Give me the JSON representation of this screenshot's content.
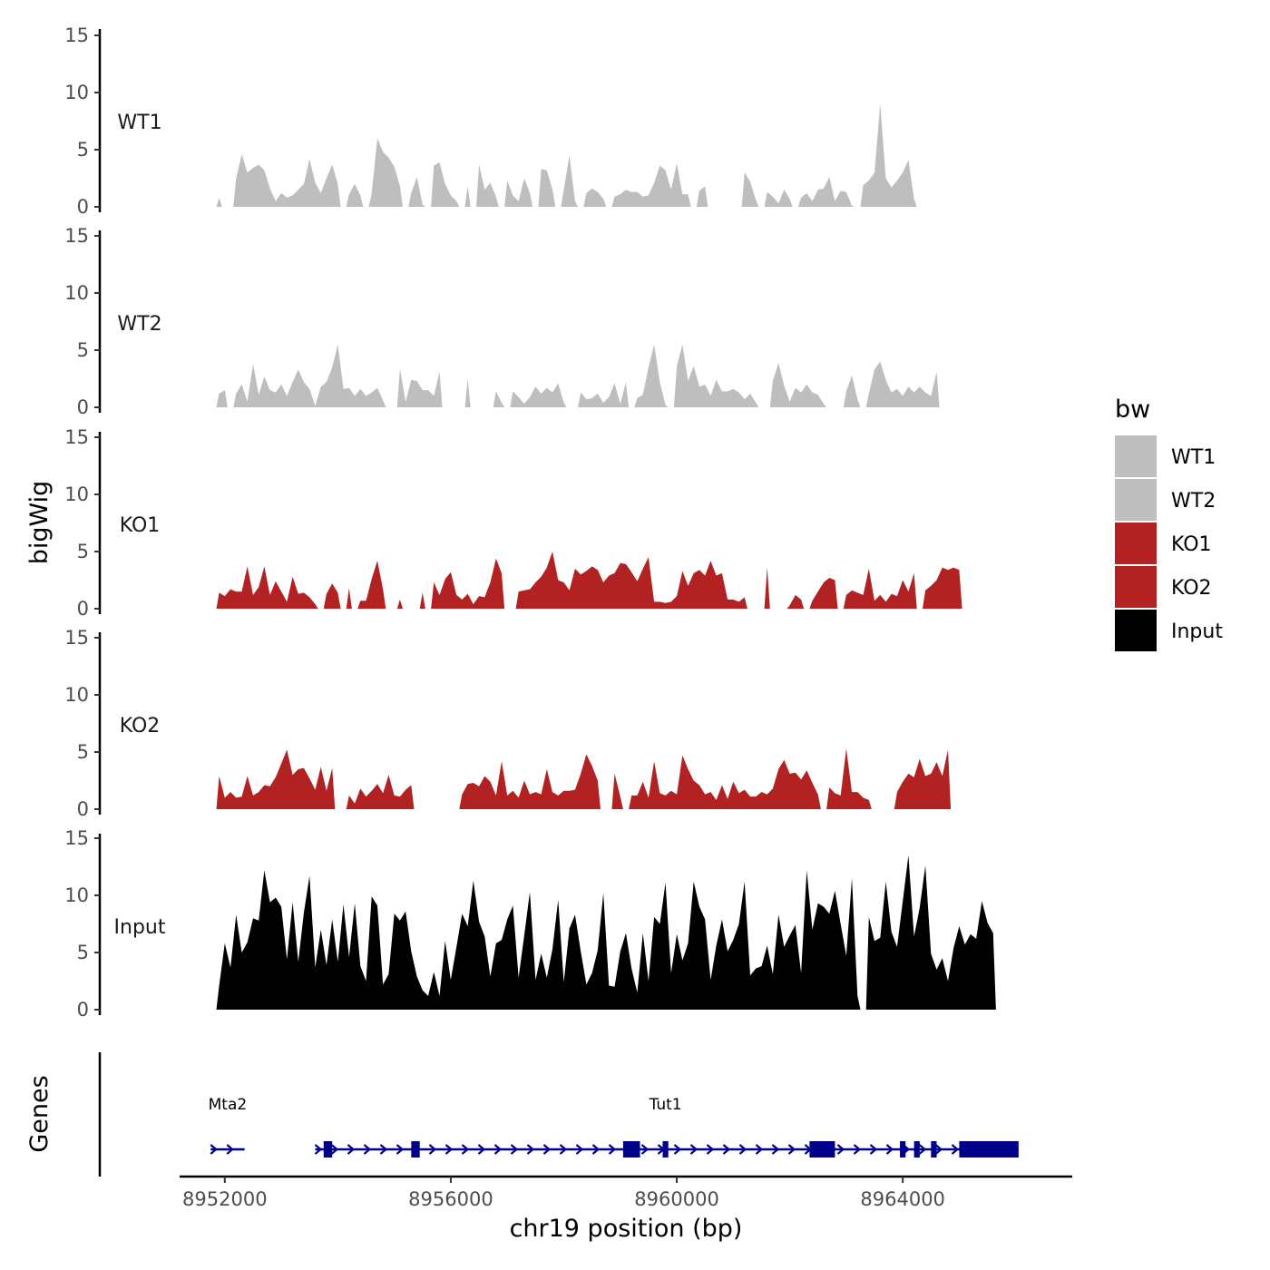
{
  "chart_data": {
    "type": "area",
    "title": "",
    "xlabel": "chr19 position (bp)",
    "ylabel_tracks": "bigWig",
    "ylabel_genes": "Genes",
    "chromosome": "chr19",
    "xlim": [
      8951200,
      8967000
    ],
    "x_ticks": [
      8952000,
      8956000,
      8960000,
      8964000
    ],
    "x_tick_labels": [
      "8952000",
      "8956000",
      "8960000",
      "8964000"
    ],
    "ylim": [
      0,
      15
    ],
    "y_ticks": [
      0,
      5,
      10,
      15
    ],
    "y_tick_labels": [
      "0",
      "5",
      "10",
      "15"
    ],
    "legend": {
      "title": "bw",
      "position": "right",
      "entries": [
        {
          "name": "WT1",
          "color": "#bebebe"
        },
        {
          "name": "WT2",
          "color": "#bebebe"
        },
        {
          "name": "KO1",
          "color": "#b22222"
        },
        {
          "name": "KO2",
          "color": "#b22222"
        },
        {
          "name": "Input",
          "color": "#000000"
        }
      ]
    },
    "series": [
      {
        "name": "WT1",
        "color": "#bebebe",
        "start": 8951900,
        "step": 100,
        "values": [
          0.8,
          0,
          0,
          2.5,
          4.6,
          3,
          3.4,
          3.7,
          3.2,
          1.6,
          0.5,
          1.2,
          0.8,
          1,
          1.5,
          2,
          4.2,
          2.1,
          1.2,
          2.5,
          3.7,
          2,
          0,
          1.1,
          2,
          1,
          0,
          1.2,
          6,
          4.8,
          4.3,
          3.5,
          1.8,
          0,
          1.2,
          2.6,
          0.2,
          0,
          3.6,
          3.9,
          2,
          1,
          0.5,
          0,
          1.8,
          0,
          3.7,
          1.5,
          2.1,
          0.9,
          0,
          2.3,
          1,
          0.5,
          2.5,
          1.2,
          0,
          3.3,
          3.2,
          1.5,
          0,
          1.5,
          4.5,
          0.5,
          0,
          1.2,
          1.6,
          1.3,
          0.7,
          0,
          0.9,
          1.1,
          1.5,
          1.3,
          1.3,
          0.9,
          1,
          2.1,
          3.6,
          3.2,
          1.5,
          3.8,
          1.1,
          1.1,
          0,
          1.4,
          1.8,
          0,
          0,
          0,
          0,
          0,
          0,
          3,
          2.2,
          0.6,
          0,
          1.3,
          0.9,
          0.3,
          1.5,
          0.7,
          0,
          0.8,
          1.2,
          0.5,
          1.5,
          1.6,
          2.6,
          0.5,
          1.4,
          1.3,
          0.1,
          0,
          1.9,
          2.3,
          3,
          9,
          2.5,
          1.7,
          2.3,
          3,
          4.1,
          0.7
        ]
      },
      {
        "name": "WT2",
        "color": "#bebebe",
        "start": 8951900,
        "step": 100,
        "values": [
          1.2,
          1.5,
          0,
          1.2,
          2,
          0.5,
          3.8,
          1.1,
          2.7,
          1.5,
          1.3,
          2,
          1,
          2.2,
          3.3,
          2.2,
          1.6,
          0.1,
          1.8,
          2.2,
          3.5,
          5.5,
          1.6,
          1.7,
          1,
          1.6,
          1,
          1.3,
          1.7,
          0.6,
          0,
          0,
          3.4,
          0.5,
          2.4,
          2.3,
          1.5,
          1.5,
          1,
          3.1,
          0,
          0,
          0,
          0,
          2.5,
          0,
          0,
          0,
          0,
          1.4,
          0.4,
          0,
          1.4,
          0.9,
          0.3,
          0.9,
          1.8,
          1.2,
          1.7,
          1.3,
          2.1,
          0.4,
          0,
          0,
          1.3,
          0.7,
          0.8,
          1.2,
          0.4,
          0.9,
          2.1,
          0.3,
          2.2,
          0,
          0.8,
          1.1,
          3.5,
          5.5,
          2.2,
          0.2,
          0,
          3.6,
          5.5,
          2.3,
          3.6,
          1.8,
          2,
          1,
          2.4,
          1.4,
          1.4,
          1.6,
          1.3,
          0.7,
          1.2,
          0.4,
          0,
          0,
          2.3,
          3.9,
          1.9,
          0.5,
          1.7,
          1.3,
          2,
          1.3,
          1.1,
          0.3,
          0,
          0,
          0,
          1.4,
          2.8,
          0.7,
          0,
          1.2,
          3.3,
          4,
          2.4,
          1.3,
          1.6,
          1,
          1.8,
          1.3,
          1.8,
          1.3,
          1,
          3.1
        ]
      },
      {
        "name": "KO1",
        "color": "#b22222",
        "start": 8951900,
        "step": 100,
        "values": [
          1.4,
          1.1,
          1.7,
          1.5,
          1.5,
          3.7,
          1.2,
          1.9,
          3.7,
          1.2,
          2.4,
          1.5,
          0.6,
          2.8,
          1.3,
          1.4,
          1,
          0.4,
          0,
          1.3,
          2.2,
          1.4,
          0,
          1.8,
          0,
          0.7,
          0.7,
          2.6,
          4.2,
          1.7,
          0,
          0,
          0.8,
          0,
          0,
          0,
          1.4,
          0,
          2.3,
          1.2,
          2.6,
          3.2,
          1.2,
          0.8,
          1.3,
          0.4,
          1.1,
          1,
          2.3,
          4.4,
          3.1,
          0,
          0,
          1.5,
          1.6,
          1.7,
          2.3,
          2.8,
          3.6,
          5,
          2.5,
          2.3,
          1.6,
          3.5,
          3,
          3.3,
          3.7,
          3.4,
          2.3,
          2.9,
          3.1,
          4,
          3.9,
          3.2,
          2.4,
          3.5,
          4.5,
          0.6,
          0.6,
          0.5,
          0.6,
          1.1,
          3.3,
          2,
          3.1,
          3.4,
          2.9,
          4.2,
          2.9,
          3.1,
          0.8,
          0.8,
          0.6,
          1,
          0,
          0,
          0,
          3.6,
          0,
          0,
          0,
          0.3,
          1.2,
          0.8,
          0,
          0.7,
          1.5,
          2.3,
          2.7,
          2.5,
          0,
          1.2,
          1.6,
          1.4,
          1.2,
          3.5,
          0.7,
          1.2,
          0.6,
          1.3,
          1.1,
          2.5,
          1.5,
          3.1,
          0,
          1.6,
          2,
          2.5,
          3.6,
          3.4,
          3.6,
          3.4
        ]
      },
      {
        "name": "KO2",
        "color": "#b22222",
        "start": 8951900,
        "step": 100,
        "values": [
          2.9,
          1,
          1.5,
          1,
          1.1,
          2.9,
          1.2,
          1.5,
          2.1,
          2,
          2.8,
          4,
          5.2,
          3,
          3.5,
          3.6,
          2.7,
          1.7,
          3.7,
          1.6,
          3.6,
          0,
          0,
          1.2,
          0.5,
          1.8,
          1.1,
          1.6,
          2.2,
          1.4,
          3,
          1.2,
          1.1,
          1.7,
          2.1,
          0,
          0,
          0,
          0,
          0,
          0,
          0,
          0,
          1.3,
          2.2,
          2.3,
          2,
          2.9,
          2.4,
          1.2,
          4.2,
          1.2,
          1.6,
          1,
          2.5,
          1.3,
          1.5,
          1.3,
          3.5,
          1.5,
          1.2,
          1.6,
          1.6,
          1.7,
          3.1,
          4.8,
          3.8,
          2.5,
          0,
          0,
          3.1,
          1.1,
          0,
          1.2,
          1.2,
          2.4,
          1,
          4.2,
          1.4,
          1.2,
          1.6,
          1.3,
          4.7,
          3.5,
          2.5,
          2.1,
          1.3,
          1.5,
          0.8,
          2.1,
          0.9,
          2.4,
          1.4,
          1.7,
          1.1,
          1.1,
          1.5,
          1.3,
          1.8,
          3.5,
          4.3,
          3.1,
          3.2,
          2.6,
          3.4,
          2.3,
          1.3,
          0,
          1.9,
          1.4,
          1.2,
          5.3,
          1.5,
          1.5,
          1,
          0.8,
          0,
          0,
          0,
          0,
          1.5,
          2.4,
          3.1,
          2.8,
          4.4,
          2.9,
          3.1,
          4.1,
          2.9,
          5.2
        ]
      },
      {
        "name": "Input",
        "color": "#000000",
        "start": 8951900,
        "step": 100,
        "values": [
          2.1,
          5.8,
          3.7,
          8.3,
          5,
          5.9,
          8,
          7.8,
          12.2,
          9.4,
          9.8,
          9,
          4.4,
          9.4,
          4.2,
          8.5,
          11.7,
          3.7,
          7,
          3.9,
          7.9,
          4.2,
          9.2,
          4.6,
          9.3,
          3.8,
          2.5,
          9.9,
          9.1,
          2.2,
          3.1,
          8.4,
          7.8,
          8.6,
          5.1,
          2.9,
          1.7,
          1.2,
          3.3,
          1.2,
          6,
          2.6,
          5.5,
          8.4,
          7.3,
          11.3,
          7.7,
          6.4,
          2.9,
          5.8,
          6.1,
          7.9,
          9.1,
          2.8,
          6.5,
          10.3,
          2.6,
          4.9,
          2.8,
          5.3,
          9.6,
          2.4,
          7.1,
          8.3,
          5.1,
          2.2,
          3.2,
          5.2,
          10.2,
          2.1,
          2,
          5.1,
          6.7,
          3.6,
          1.5,
          6.7,
          2.5,
          8.1,
          7.5,
          11.1,
          3.2,
          6.6,
          4.3,
          5.8,
          11.2,
          9,
          7.9,
          2.6,
          5.6,
          7.9,
          5.1,
          6.1,
          7.5,
          11.2,
          3,
          3.6,
          3.8,
          5.6,
          3.1,
          8.3,
          5.5,
          6.5,
          7.4,
          3.2,
          12.2,
          7,
          9.3,
          9,
          8.4,
          10.4,
          7.5,
          4.7,
          11.5,
          1.2,
          0,
          8.1,
          6,
          6.3,
          11.2,
          6.8,
          5.5,
          9.5,
          13.5,
          6.4,
          8.9,
          12.6,
          4.9,
          3.5,
          4.5,
          2.5,
          5.4,
          7.3,
          5.7,
          6.6,
          6.2,
          9.5,
          7.6,
          6.7
        ]
      }
    ],
    "genes": [
      {
        "name": "Mta2",
        "start": 8951750,
        "end": 8952350,
        "strand": "+",
        "exons": []
      },
      {
        "name": "Tut1",
        "start": 8953600,
        "end": 8966050,
        "strand": "+",
        "exons": [
          [
            8953750,
            8953900
          ],
          [
            8955300,
            8955450
          ],
          [
            8959050,
            8959350
          ],
          [
            8959750,
            8959850
          ],
          [
            8962350,
            8962800
          ],
          [
            8963950,
            8964050
          ],
          [
            8964200,
            8964300
          ],
          [
            8964500,
            8964600
          ],
          [
            8965000,
            8966050
          ]
        ]
      }
    ]
  }
}
